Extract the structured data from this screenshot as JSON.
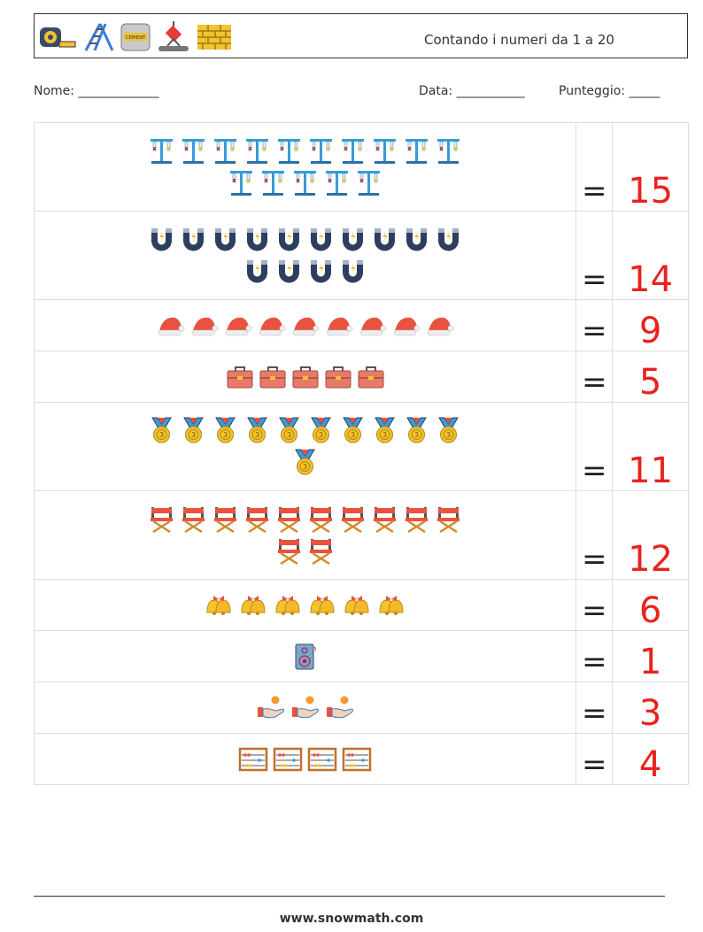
{
  "header": {
    "title": "Contando i numeri da 1 a 20",
    "icons": [
      "tape-measure-icon",
      "ladder-icon",
      "cement-bag-icon",
      "crane-hook-icon",
      "brick-wall-icon"
    ],
    "cement_label": "CEMENT"
  },
  "fields": {
    "name": "Nome: _____________",
    "date": "Data: ___________",
    "score": "Punteggio: _____"
  },
  "rows": [
    {
      "icon": "test-tube-rack-icon",
      "count": 15,
      "equals": "=",
      "answer": "15"
    },
    {
      "icon": "magnet-icon",
      "count": 14,
      "equals": "=",
      "answer": "14"
    },
    {
      "icon": "santa-hat-icon",
      "count": 9,
      "equals": "=",
      "answer": "9"
    },
    {
      "icon": "toolbox-icon",
      "count": 5,
      "equals": "=",
      "answer": "5"
    },
    {
      "icon": "medal-icon",
      "count": 11,
      "equals": "=",
      "answer": "11"
    },
    {
      "icon": "director-chair-icon",
      "count": 12,
      "equals": "=",
      "answer": "12"
    },
    {
      "icon": "bells-icon",
      "count": 6,
      "equals": "=",
      "answer": "6"
    },
    {
      "icon": "speaker-icon",
      "count": 1,
      "equals": "=",
      "answer": "1"
    },
    {
      "icon": "hand-coin-icon",
      "count": 3,
      "equals": "=",
      "answer": "3"
    },
    {
      "icon": "abacus-icon",
      "count": 4,
      "equals": "=",
      "answer": "4"
    }
  ],
  "footer": "www.snowmath.com",
  "colors": {
    "answer": "#e8231d",
    "border": "#dddddd"
  }
}
